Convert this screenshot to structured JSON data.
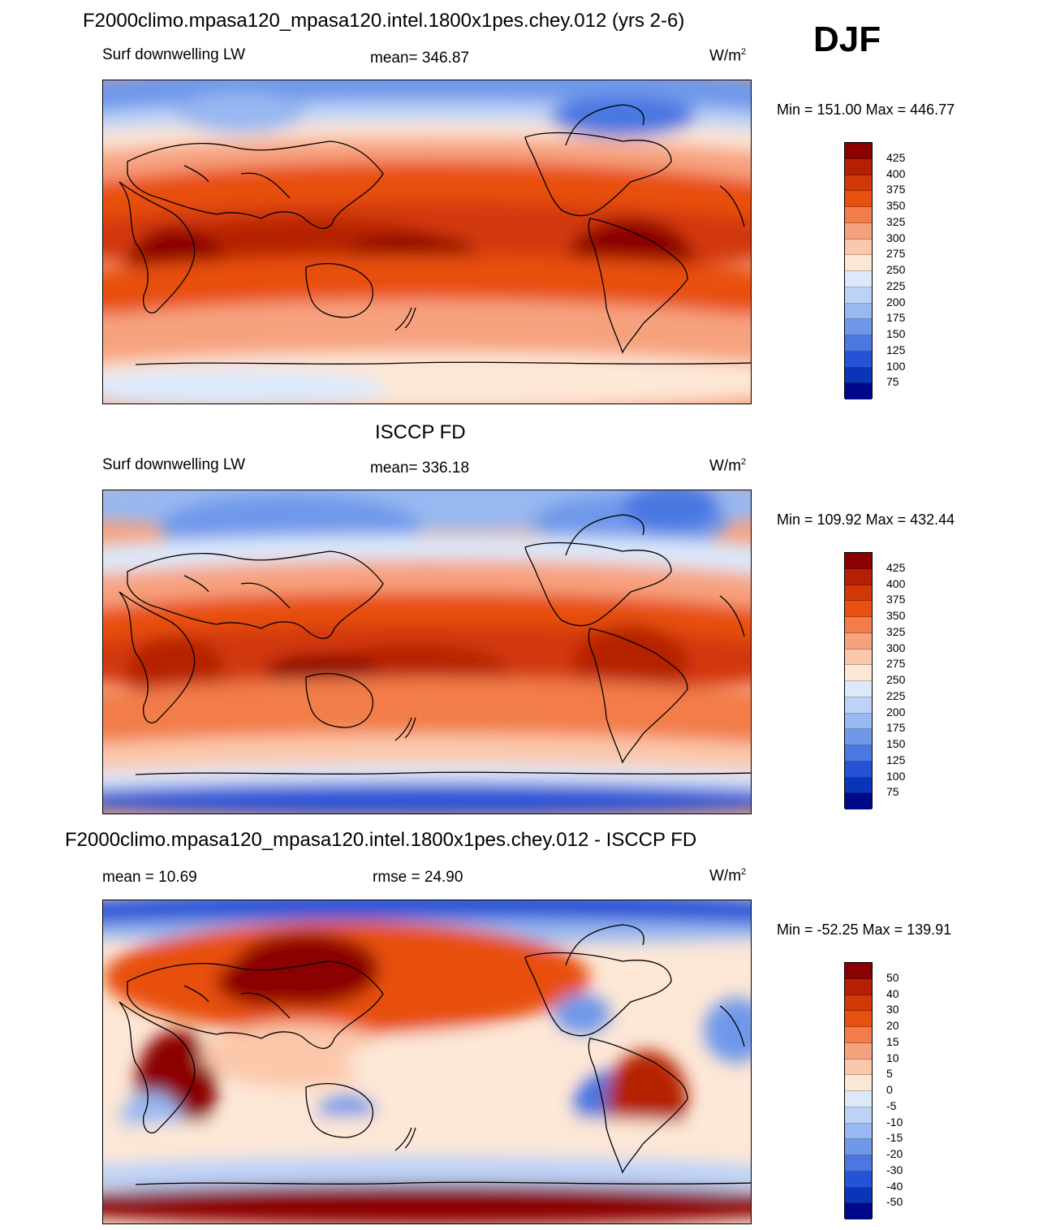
{
  "header": {
    "top_title": "F2000climo.mpasa120_mpasa120.intel.1800x1pes.chey.012 (yrs 2-6)",
    "season": "DJF"
  },
  "panels": [
    {
      "id": "model",
      "title": "",
      "left_label": "Surf downwelling LW",
      "center_label": "mean= 346.87",
      "units": "W/m",
      "units_sup": "2",
      "minmax": "Min = 151.00 Max = 446.77",
      "colorbar_labels": [
        "425",
        "400",
        "375",
        "350",
        "325",
        "300",
        "275",
        "250",
        "225",
        "200",
        "175",
        "150",
        "125",
        "100",
        "75"
      ]
    },
    {
      "id": "obs",
      "title": "ISCCP FD",
      "left_label": "Surf downwelling LW",
      "center_label": "mean= 336.18",
      "units": "W/m",
      "units_sup": "2",
      "minmax": "Min = 109.92 Max = 432.44",
      "colorbar_labels": [
        "425",
        "400",
        "375",
        "350",
        "325",
        "300",
        "275",
        "250",
        "225",
        "200",
        "175",
        "150",
        "125",
        "100",
        "75"
      ]
    },
    {
      "id": "diff",
      "title": "F2000climo.mpasa120_mpasa120.intel.1800x1pes.chey.012 - ISCCP FD",
      "left_label": "mean =  10.69",
      "center_label": "rmse =  24.90",
      "units": "W/m",
      "units_sup": "2",
      "minmax": "Min = -52.25 Max = 139.91",
      "colorbar_labels": [
        "50",
        "40",
        "30",
        "20",
        "15",
        "10",
        "5",
        "0",
        "-5",
        "-10",
        "-15",
        "-20",
        "-30",
        "-40",
        "-50"
      ]
    }
  ],
  "colors": {
    "palette_16": [
      "#8b0000",
      "#b52003",
      "#d23708",
      "#e8500f",
      "#f27d4a",
      "#f7a27f",
      "#fbc8ab",
      "#fde7d6",
      "#dbe9fb",
      "#bcd3f7",
      "#97b8f1",
      "#6f98ea",
      "#4a77e1",
      "#2553d6",
      "#0b35b8",
      "#00088a"
    ]
  }
}
